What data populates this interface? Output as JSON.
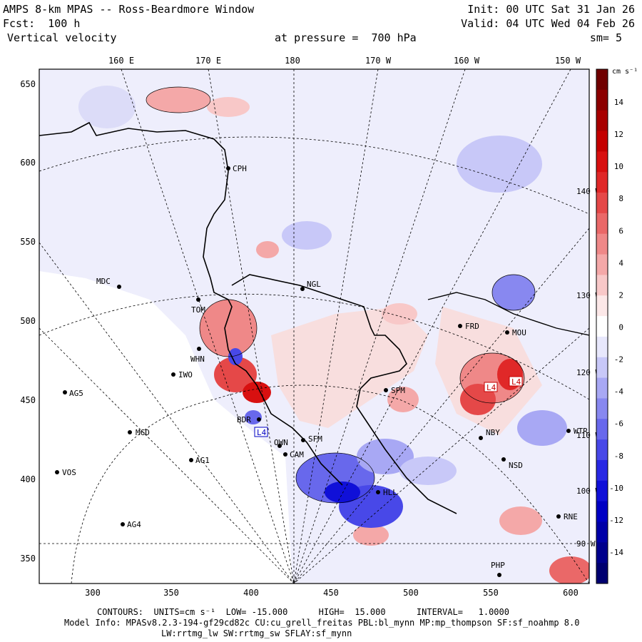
{
  "header": {
    "title": "AMPS 8-km MPAS -- Ross-Beardmore Window",
    "init": "Init: 00 UTC Sat 31 Jan 26",
    "forecast": "Fcst:  100 h",
    "valid": "Valid: 04 UTC Wed 04 Feb 26",
    "field": "Vertical velocity",
    "pressure": "at pressure =  700 hPa",
    "smoothing": "sm= 5"
  },
  "colorbar": {
    "unit": "cm s⁻¹",
    "labels": [
      "14",
      "12",
      "10",
      "8",
      "6",
      "4",
      "2",
      "0",
      "-2",
      "-4",
      "-6",
      "-8",
      "-10",
      "-12",
      "-14"
    ],
    "positive_colors": [
      "#fce8e8",
      "#f8c8c8",
      "#f4a8a8",
      "#ef8888",
      "#ea6868",
      "#e54848",
      "#e02828",
      "#d81010",
      "#c40000",
      "#a80000",
      "#8c0000",
      "#700000"
    ],
    "negative_colors": [
      "#e8e8fc",
      "#c8c8f8",
      "#a8a8f4",
      "#8888f0",
      "#6868ec",
      "#4848e8",
      "#2828e4",
      "#1010d8",
      "#0000c4",
      "#0000a8",
      "#00008c",
      "#000070"
    ],
    "neutral_color": "#ffffff"
  },
  "axes": {
    "x_ticks": [
      "300",
      "350",
      "400",
      "450",
      "500",
      "550",
      "600"
    ],
    "y_ticks": [
      "650",
      "600",
      "550",
      "500",
      "450",
      "400",
      "350"
    ],
    "lon_labels": [
      "160 E",
      "170 E",
      "180",
      "170 W",
      "160 W",
      "150 W"
    ],
    "right_lon_labels": [
      "140 W",
      "130 W",
      "120 W",
      "110 W",
      "100 W",
      "90 W"
    ]
  },
  "stations": [
    "CPH",
    "MDC",
    "NGL",
    "TOM",
    "WHN",
    "IWO",
    "AG5",
    "MGD",
    "BDR",
    "SFM",
    "OWN",
    "CAM",
    "AG1",
    "VOS",
    "AG4",
    "HLL",
    "SPM",
    "FRD",
    "MOU",
    "NBY",
    "NSD",
    "RNE",
    "PHP",
    "WTR"
  ],
  "markers": {
    "low_label": "L4",
    "high_labels": [
      "L4",
      "L4"
    ]
  },
  "footer": {
    "contours": "CONTOURS:  UNITS=cm s⁻¹  LOW= -15.000      HIGH=  15.000      INTERVAL=   1.0000",
    "model_info": "Model Info: MPASv8.2.3-194-gf29cd82c CU:cu_grell_freitas PBL:bl_mynn MP:mp_thompson SF:sf_noahmp 8.0",
    "model_info2": "LW:rrtmg_lw SW:rrtmg_sw SFLAY:sf_mynn"
  }
}
